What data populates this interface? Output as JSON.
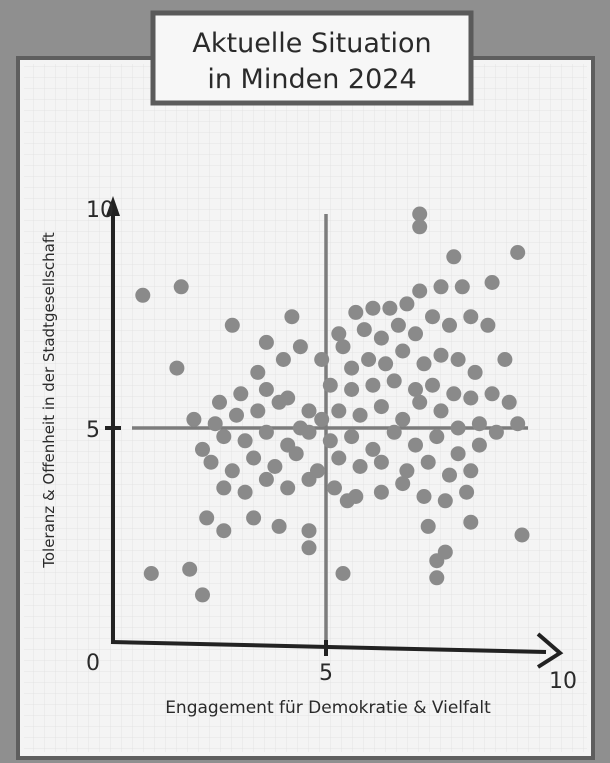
{
  "chart_data": {
    "type": "scatter",
    "title": "Aktuelle Situation\nin Minden 2024",
    "title_lines": [
      "Aktuelle Situation",
      "in Minden 2024"
    ],
    "xlabel": "Engagement für Demokratie & Vielfalt",
    "ylabel": "Toleranz & Offenheit in der Stadtgesellschaft",
    "xlim": [
      0,
      10
    ],
    "ylim": [
      0,
      10
    ],
    "x_ticks": [
      "0",
      "5",
      "10"
    ],
    "y_ticks": [
      "10",
      "5"
    ],
    "origin_label": "0",
    "grid": true,
    "reference_lines": [
      {
        "axis": "x",
        "value": 5
      },
      {
        "axis": "y",
        "value": 5
      }
    ],
    "point_color": "#8a8a8a",
    "points": [
      [
        0.7,
        8.1
      ],
      [
        1.6,
        8.3
      ],
      [
        1.5,
        6.4
      ],
      [
        2.8,
        7.4
      ],
      [
        4.2,
        7.6
      ],
      [
        3.6,
        7.0
      ],
      [
        4.4,
        6.9
      ],
      [
        4.0,
        6.6
      ],
      [
        3.4,
        6.3
      ],
      [
        4.9,
        6.6
      ],
      [
        5.3,
        7.2
      ],
      [
        5.7,
        7.7
      ],
      [
        6.1,
        7.8
      ],
      [
        6.5,
        7.8
      ],
      [
        6.9,
        7.9
      ],
      [
        7.2,
        8.2
      ],
      [
        7.7,
        8.3
      ],
      [
        8.2,
        8.3
      ],
      [
        8.0,
        9.0
      ],
      [
        7.2,
        9.7
      ],
      [
        7.2,
        10.0
      ],
      [
        9.5,
        9.1
      ],
      [
        8.9,
        8.4
      ],
      [
        5.4,
        6.9
      ],
      [
        5.9,
        7.3
      ],
      [
        6.3,
        7.1
      ],
      [
        6.7,
        7.4
      ],
      [
        7.1,
        7.2
      ],
      [
        7.5,
        7.6
      ],
      [
        7.9,
        7.4
      ],
      [
        8.4,
        7.6
      ],
      [
        8.8,
        7.4
      ],
      [
        5.6,
        6.4
      ],
      [
        6.0,
        6.6
      ],
      [
        6.4,
        6.5
      ],
      [
        6.8,
        6.8
      ],
      [
        7.3,
        6.5
      ],
      [
        7.7,
        6.7
      ],
      [
        8.1,
        6.6
      ],
      [
        8.5,
        6.3
      ],
      [
        9.2,
        6.6
      ],
      [
        5.1,
        6.0
      ],
      [
        5.6,
        5.9
      ],
      [
        6.1,
        6.0
      ],
      [
        6.6,
        6.1
      ],
      [
        7.1,
        5.9
      ],
      [
        7.5,
        6.0
      ],
      [
        8.0,
        5.8
      ],
      [
        8.4,
        5.7
      ],
      [
        8.9,
        5.8
      ],
      [
        9.3,
        5.6
      ],
      [
        5.3,
        5.4
      ],
      [
        5.8,
        5.3
      ],
      [
        6.3,
        5.5
      ],
      [
        6.8,
        5.2
      ],
      [
        7.2,
        5.6
      ],
      [
        7.7,
        5.4
      ],
      [
        8.1,
        5.0
      ],
      [
        8.6,
        5.1
      ],
      [
        9.0,
        4.9
      ],
      [
        9.5,
        5.1
      ],
      [
        1.9,
        5.2
      ],
      [
        2.4,
        5.1
      ],
      [
        2.9,
        5.3
      ],
      [
        3.4,
        5.4
      ],
      [
        3.9,
        5.6
      ],
      [
        4.4,
        5.0
      ],
      [
        4.9,
        5.2
      ],
      [
        2.5,
        5.6
      ],
      [
        3.0,
        5.8
      ],
      [
        3.6,
        5.9
      ],
      [
        4.1,
        5.7
      ],
      [
        4.6,
        5.4
      ],
      [
        2.1,
        4.5
      ],
      [
        2.6,
        4.8
      ],
      [
        3.1,
        4.7
      ],
      [
        3.6,
        4.9
      ],
      [
        4.1,
        4.6
      ],
      [
        4.6,
        4.9
      ],
      [
        5.1,
        4.7
      ],
      [
        5.6,
        4.8
      ],
      [
        6.1,
        4.5
      ],
      [
        6.6,
        4.9
      ],
      [
        7.1,
        4.6
      ],
      [
        7.6,
        4.8
      ],
      [
        8.1,
        4.4
      ],
      [
        8.6,
        4.6
      ],
      [
        2.3,
        4.2
      ],
      [
        2.8,
        4.0
      ],
      [
        3.3,
        4.3
      ],
      [
        3.8,
        4.1
      ],
      [
        4.3,
        4.4
      ],
      [
        4.8,
        4.0
      ],
      [
        5.3,
        4.3
      ],
      [
        5.8,
        4.1
      ],
      [
        6.3,
        4.2
      ],
      [
        6.9,
        4.0
      ],
      [
        7.4,
        4.2
      ],
      [
        7.9,
        3.9
      ],
      [
        8.4,
        4.0
      ],
      [
        2.6,
        3.6
      ],
      [
        3.1,
        3.5
      ],
      [
        3.6,
        3.8
      ],
      [
        4.1,
        3.6
      ],
      [
        4.6,
        3.8
      ],
      [
        5.2,
        3.6
      ],
      [
        5.7,
        3.4
      ],
      [
        6.3,
        3.5
      ],
      [
        6.8,
        3.7
      ],
      [
        7.3,
        3.4
      ],
      [
        7.8,
        3.3
      ],
      [
        8.3,
        3.5
      ],
      [
        2.2,
        2.9
      ],
      [
        2.6,
        2.6
      ],
      [
        3.3,
        2.9
      ],
      [
        3.9,
        2.7
      ],
      [
        4.6,
        2.6
      ],
      [
        5.5,
        3.3
      ],
      [
        4.6,
        2.2
      ],
      [
        5.4,
        1.6
      ],
      [
        7.4,
        2.7
      ],
      [
        7.8,
        2.1
      ],
      [
        8.4,
        2.8
      ],
      [
        9.6,
        2.5
      ],
      [
        0.9,
        1.6
      ],
      [
        1.8,
        1.7
      ],
      [
        2.1,
        1.1
      ],
      [
        7.6,
        1.9
      ],
      [
        7.6,
        1.5
      ]
    ]
  }
}
